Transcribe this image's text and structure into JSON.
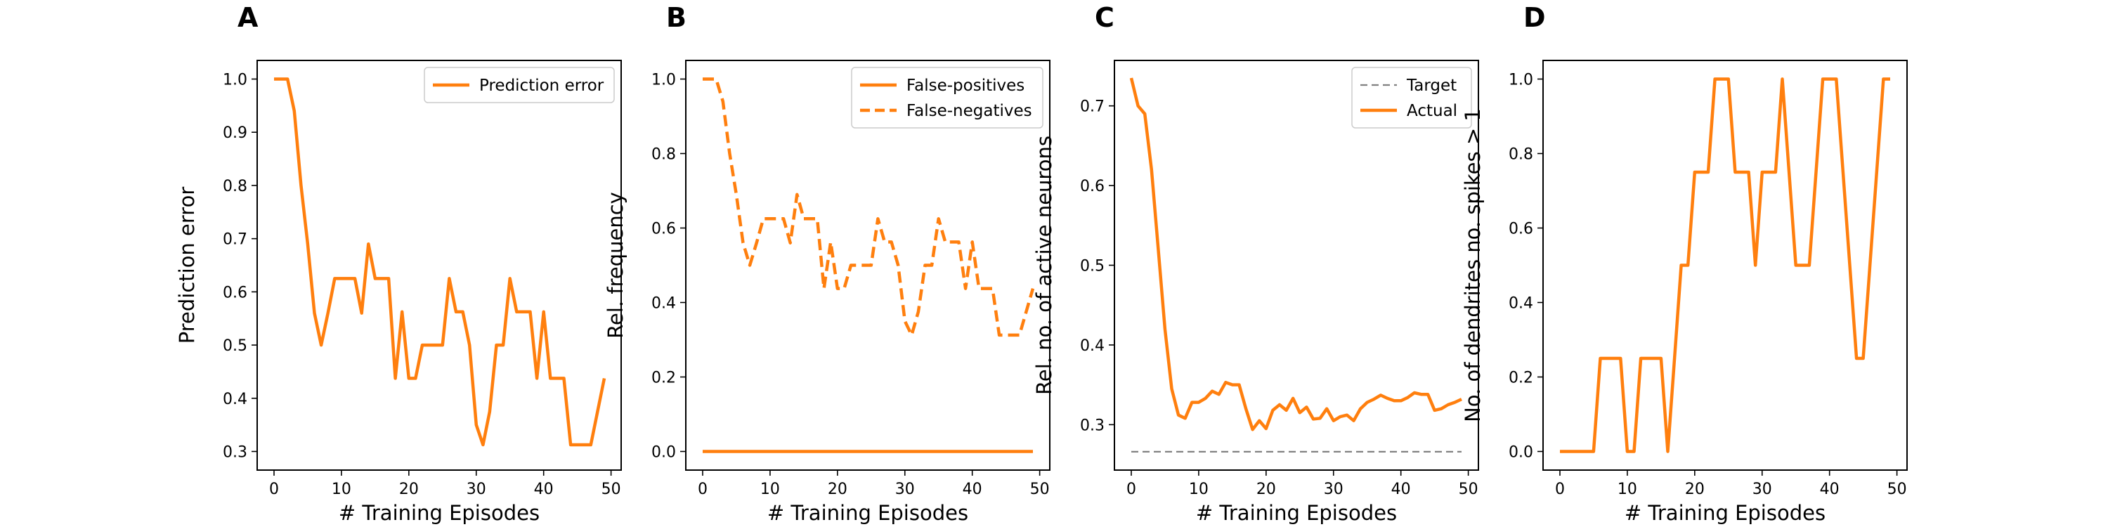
{
  "colors": {
    "series": "#ff7f0e",
    "target": "#808080",
    "axes": "#000000",
    "legend_border": "#cccccc"
  },
  "chart_data": [
    {
      "panel": "A",
      "type": "line",
      "title": "",
      "xlabel": "# Training Episodes",
      "ylabel": "Prediction error",
      "xlim": [
        -2.5,
        51.5
      ],
      "ylim": [
        0.265,
        1.035
      ],
      "xticks": [
        0,
        10,
        20,
        30,
        40,
        50
      ],
      "yticks": [
        0.3,
        0.4,
        0.5,
        0.6,
        0.7,
        0.8,
        0.9,
        1.0
      ],
      "ytick_labels": [
        "0.3",
        "0.4",
        "0.5",
        "0.6",
        "0.7",
        "0.8",
        "0.9",
        "1.0"
      ],
      "grid": false,
      "legend_position": "upper right",
      "series": [
        {
          "name": "Prediction error",
          "style": "solid",
          "x": [
            0,
            1,
            2,
            3,
            4,
            5,
            6,
            7,
            8,
            9,
            10,
            11,
            12,
            13,
            14,
            15,
            16,
            17,
            18,
            19,
            20,
            21,
            22,
            23,
            24,
            25,
            26,
            27,
            28,
            29,
            30,
            31,
            32,
            33,
            34,
            35,
            36,
            37,
            38,
            39,
            40,
            41,
            42,
            43,
            44,
            45,
            46,
            47,
            48,
            49
          ],
          "y": [
            1.0,
            1.0,
            1.0,
            0.94,
            0.8,
            0.69,
            0.56,
            0.5,
            0.56,
            0.625,
            0.625,
            0.625,
            0.625,
            0.56,
            0.69,
            0.625,
            0.625,
            0.625,
            0.4375,
            0.5625,
            0.4375,
            0.4375,
            0.5,
            0.5,
            0.5,
            0.5,
            0.625,
            0.5625,
            0.5625,
            0.5,
            0.35,
            0.3125,
            0.375,
            0.5,
            0.5,
            0.625,
            0.5625,
            0.5625,
            0.5625,
            0.4375,
            0.5625,
            0.4375,
            0.4375,
            0.4375,
            0.3125,
            0.3125,
            0.3125,
            0.3125,
            0.375,
            0.4375
          ]
        }
      ]
    },
    {
      "panel": "B",
      "type": "line",
      "title": "",
      "xlabel": "# Training Episodes",
      "ylabel": "Rel. frequency",
      "xlim": [
        -2.5,
        51.5
      ],
      "ylim": [
        -0.05,
        1.05
      ],
      "xticks": [
        0,
        10,
        20,
        30,
        40,
        50
      ],
      "yticks": [
        0.0,
        0.2,
        0.4,
        0.6,
        0.8,
        1.0
      ],
      "ytick_labels": [
        "0.0",
        "0.2",
        "0.4",
        "0.6",
        "0.8",
        "1.0"
      ],
      "grid": false,
      "legend_position": "upper right",
      "series": [
        {
          "name": "False-positives",
          "style": "solid",
          "x": [
            0,
            1,
            2,
            3,
            4,
            5,
            6,
            7,
            8,
            9,
            10,
            11,
            12,
            13,
            14,
            15,
            16,
            17,
            18,
            19,
            20,
            21,
            22,
            23,
            24,
            25,
            26,
            27,
            28,
            29,
            30,
            31,
            32,
            33,
            34,
            35,
            36,
            37,
            38,
            39,
            40,
            41,
            42,
            43,
            44,
            45,
            46,
            47,
            48,
            49
          ],
          "y": [
            0,
            0,
            0,
            0,
            0,
            0,
            0,
            0,
            0,
            0,
            0,
            0,
            0,
            0,
            0,
            0,
            0,
            0,
            0,
            0,
            0,
            0,
            0,
            0,
            0,
            0,
            0,
            0,
            0,
            0,
            0,
            0,
            0,
            0,
            0,
            0,
            0,
            0,
            0,
            0,
            0,
            0,
            0,
            0,
            0,
            0,
            0,
            0,
            0,
            0
          ]
        },
        {
          "name": "False-negatives",
          "style": "dashed",
          "x": [
            0,
            1,
            2,
            3,
            4,
            5,
            6,
            7,
            8,
            9,
            10,
            11,
            12,
            13,
            14,
            15,
            16,
            17,
            18,
            19,
            20,
            21,
            22,
            23,
            24,
            25,
            26,
            27,
            28,
            29,
            30,
            31,
            32,
            33,
            34,
            35,
            36,
            37,
            38,
            39,
            40,
            41,
            42,
            43,
            44,
            45,
            46,
            47,
            48,
            49
          ],
          "y": [
            1.0,
            1.0,
            1.0,
            0.94,
            0.8,
            0.69,
            0.56,
            0.5,
            0.56,
            0.625,
            0.625,
            0.625,
            0.625,
            0.56,
            0.69,
            0.625,
            0.625,
            0.625,
            0.4375,
            0.5625,
            0.4375,
            0.4375,
            0.5,
            0.5,
            0.5,
            0.5,
            0.625,
            0.5625,
            0.5625,
            0.5,
            0.35,
            0.3125,
            0.375,
            0.5,
            0.5,
            0.625,
            0.5625,
            0.5625,
            0.5625,
            0.4375,
            0.5625,
            0.4375,
            0.4375,
            0.4375,
            0.3125,
            0.3125,
            0.3125,
            0.3125,
            0.375,
            0.4375
          ]
        }
      ]
    },
    {
      "panel": "C",
      "type": "line",
      "title": "",
      "xlabel": "# Training Episodes",
      "ylabel": "Rel. no. of active neurons",
      "xlim": [
        -2.5,
        51.5
      ],
      "ylim": [
        0.243,
        0.757
      ],
      "xticks": [
        0,
        10,
        20,
        30,
        40,
        50
      ],
      "yticks": [
        0.3,
        0.4,
        0.5,
        0.6,
        0.7
      ],
      "ytick_labels": [
        "0.3",
        "0.4",
        "0.5",
        "0.6",
        "0.7"
      ],
      "grid": false,
      "legend_position": "upper right",
      "series": [
        {
          "name": "Target",
          "style": "dashed",
          "x": [
            0,
            49
          ],
          "y": [
            0.266,
            0.266
          ]
        },
        {
          "name": "Actual",
          "style": "solid",
          "x": [
            0,
            1,
            2,
            3,
            4,
            5,
            6,
            7,
            8,
            9,
            10,
            11,
            12,
            13,
            14,
            15,
            16,
            17,
            18,
            19,
            20,
            21,
            22,
            23,
            24,
            25,
            26,
            27,
            28,
            29,
            30,
            31,
            32,
            33,
            34,
            35,
            36,
            37,
            38,
            39,
            40,
            41,
            42,
            43,
            44,
            45,
            46,
            47,
            48,
            49
          ],
          "y": [
            0.735,
            0.7,
            0.69,
            0.62,
            0.52,
            0.42,
            0.345,
            0.312,
            0.308,
            0.328,
            0.328,
            0.333,
            0.342,
            0.338,
            0.353,
            0.35,
            0.35,
            0.32,
            0.294,
            0.305,
            0.295,
            0.318,
            0.325,
            0.318,
            0.333,
            0.315,
            0.322,
            0.307,
            0.308,
            0.32,
            0.305,
            0.31,
            0.312,
            0.305,
            0.32,
            0.328,
            0.332,
            0.337,
            0.333,
            0.33,
            0.33,
            0.334,
            0.34,
            0.338,
            0.338,
            0.318,
            0.32,
            0.325,
            0.328,
            0.332
          ]
        }
      ]
    },
    {
      "panel": "D",
      "type": "line",
      "title": "",
      "xlabel": "# Training Episodes",
      "ylabel": "No. of dendrites no. spikes > 1",
      "xlim": [
        -2.5,
        51.5
      ],
      "ylim": [
        -0.05,
        1.05
      ],
      "xticks": [
        0,
        10,
        20,
        30,
        40,
        50
      ],
      "yticks": [
        0.0,
        0.2,
        0.4,
        0.6,
        0.8,
        1.0
      ],
      "ytick_labels": [
        "0.0",
        "0.2",
        "0.4",
        "0.6",
        "0.8",
        "1.0"
      ],
      "grid": false,
      "legend_position": "none",
      "series": [
        {
          "name": "",
          "style": "solid",
          "x": [
            0,
            1,
            2,
            3,
            4,
            5,
            6,
            7,
            8,
            9,
            10,
            11,
            12,
            13,
            14,
            15,
            16,
            17,
            18,
            19,
            20,
            21,
            22,
            23,
            24,
            25,
            26,
            27,
            28,
            29,
            30,
            31,
            32,
            33,
            34,
            35,
            36,
            37,
            38,
            39,
            40,
            41,
            42,
            43,
            44,
            45,
            46,
            47,
            48,
            49
          ],
          "y": [
            0,
            0,
            0,
            0,
            0,
            0,
            0.25,
            0.25,
            0.25,
            0.25,
            0,
            0,
            0.25,
            0.25,
            0.25,
            0.25,
            0,
            0.25,
            0.5,
            0.5,
            0.75,
            0.75,
            0.75,
            1.0,
            1.0,
            1.0,
            0.75,
            0.75,
            0.75,
            0.5,
            0.75,
            0.75,
            0.75,
            1.0,
            0.75,
            0.5,
            0.5,
            0.5,
            0.75,
            1.0,
            1.0,
            1.0,
            0.75,
            0.5,
            0.25,
            0.25,
            0.5,
            0.75,
            1.0,
            1.0
          ]
        }
      ]
    }
  ]
}
